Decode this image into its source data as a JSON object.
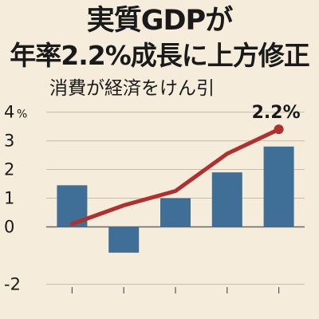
{
  "header": {
    "title_line1": "実質GDPが",
    "title_line2": "年率2.2%成長に上方修正",
    "subtitle": "消費が経済をけん引"
  },
  "chart_data": {
    "type": "bar",
    "categories": [
      "",
      "",
      "",
      "",
      ""
    ],
    "series": [
      {
        "type": "bar",
        "values": [
          1.45,
          -0.9,
          1.0,
          1.9,
          2.8
        ],
        "color": "#3f6f97"
      },
      {
        "type": "line",
        "values": [
          0.1,
          0.75,
          1.25,
          2.55,
          3.4
        ],
        "color": "#b03030"
      }
    ],
    "y_ticks": [
      "-2",
      "0",
      "1",
      "2",
      "3",
      "4"
    ],
    "y_unit": "%",
    "ylim": [
      -2.1,
      4.1
    ],
    "annotation": "2.2%",
    "grid": true
  }
}
